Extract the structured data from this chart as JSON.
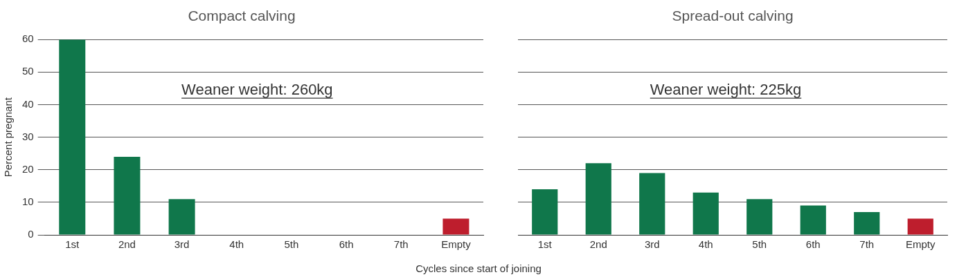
{
  "chart_data": [
    {
      "type": "bar",
      "title": "Compact calving",
      "ylabel": "Percent pregnant",
      "xlabel": "Cycles since start of joining",
      "categories": [
        "1st",
        "2nd",
        "3rd",
        "4th",
        "5th",
        "6th",
        "7th",
        "Empty"
      ],
      "values": [
        60,
        24,
        11,
        0,
        0,
        0,
        0,
        5
      ],
      "colors": [
        "#10774b",
        "#10774b",
        "#10774b",
        "#10774b",
        "#10774b",
        "#10774b",
        "#10774b",
        "#be1e2d"
      ],
      "ylim": [
        0,
        60
      ],
      "yticks": [
        0,
        10,
        20,
        30,
        40,
        50,
        60
      ],
      "grid": "y",
      "annotations": [
        "Weaner weight: 260kg"
      ]
    },
    {
      "type": "bar",
      "title": "Spread-out calving",
      "categories": [
        "1st",
        "2nd",
        "3rd",
        "4th",
        "5th",
        "6th",
        "7th",
        "Empty"
      ],
      "values": [
        14,
        22,
        19,
        13,
        11,
        9,
        7,
        5
      ],
      "colors": [
        "#10774b",
        "#10774b",
        "#10774b",
        "#10774b",
        "#10774b",
        "#10774b",
        "#10774b",
        "#be1e2d"
      ],
      "ylim": [
        0,
        60
      ],
      "yticks": [
        0,
        10,
        20,
        30,
        40,
        50,
        60
      ],
      "grid": "y",
      "tick_labels": "x",
      "annotations": [
        "Weaner weight: 225kg"
      ]
    }
  ]
}
